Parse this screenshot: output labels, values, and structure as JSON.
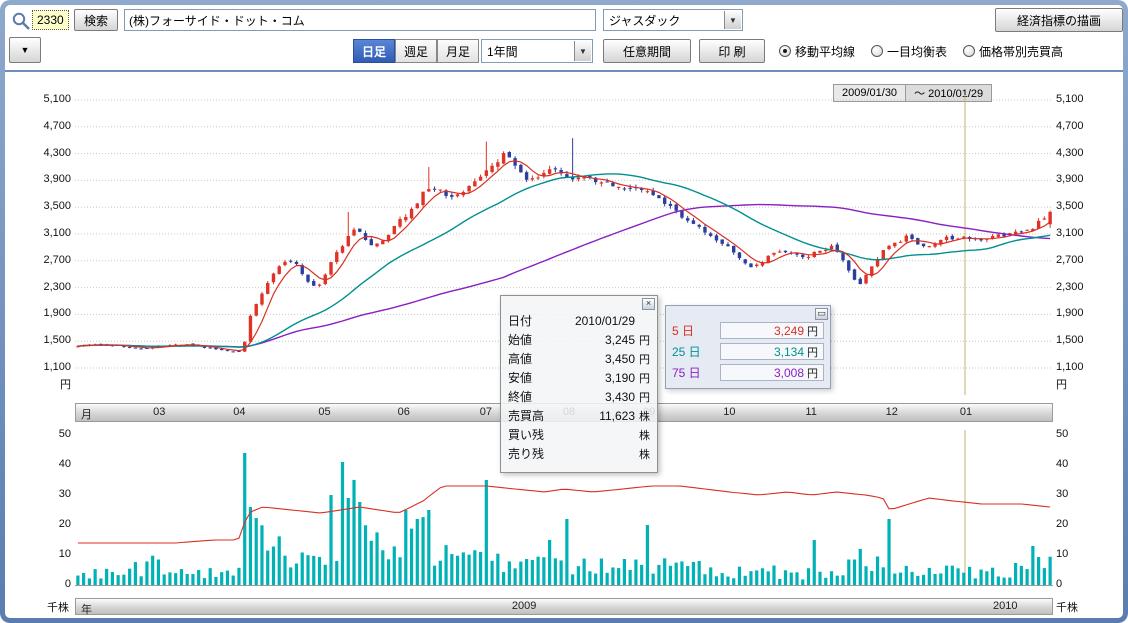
{
  "colors": {
    "frame": "#6d8fbf",
    "active_tab": "#2f5cb5",
    "code_field_bg": "#ffffcc"
  },
  "toolbar": {
    "code_value": "2330",
    "search_button": "検索",
    "company_value": "(株)フォーサイド・ドット・コム",
    "market_select": "ジャスダック",
    "draw_indicator_button": "経済指標の描画",
    "dropdown_arrow": "▼",
    "tab_daily": "日足",
    "tab_weekly": "週足",
    "tab_monthly": "月足",
    "period_select": "1年間",
    "custom_period_button": "任意期間",
    "print_button": "印 刷",
    "radio_ma": "移動平均線",
    "radio_ichimoku": "一目均衡表",
    "radio_volume_by_price": "価格帯別売買高"
  },
  "date_range": {
    "from": "2009/01/30",
    "to": "～ 2010/01/29"
  },
  "price_axis": {
    "ticks": [
      "5,100",
      "4,700",
      "4,300",
      "3,900",
      "3,500",
      "3,100",
      "2,700",
      "2,300",
      "1,900",
      "1,500",
      "1,100"
    ],
    "unit": "円"
  },
  "volume_axis": {
    "ticks": [
      "50",
      "40",
      "30",
      "20",
      "10",
      "0"
    ],
    "unit": "千株"
  },
  "month_strip": {
    "left_label": "月"
  },
  "year_strip": {
    "left_label": "年",
    "years": [
      {
        "label": "2009",
        "x": 0.46
      },
      {
        "label": "2010",
        "x": 0.952
      }
    ]
  },
  "tooltip": {
    "rows": [
      {
        "label": "日付",
        "value": "2010/01/29",
        "suffix": ""
      },
      {
        "label": "始値",
        "value": "3,245",
        "suffix": "円"
      },
      {
        "label": "高値",
        "value": "3,450",
        "suffix": "円"
      },
      {
        "label": "安値",
        "value": "3,190",
        "suffix": "円"
      },
      {
        "label": "終値",
        "value": "3,430",
        "suffix": "円"
      },
      {
        "label": "売買高",
        "value": "11,623",
        "suffix": "株"
      },
      {
        "label": "買い残",
        "value": "",
        "suffix": "株"
      },
      {
        "label": "売り残",
        "value": "",
        "suffix": "株"
      }
    ]
  },
  "ma_legend": {
    "rows": [
      {
        "label": "5 日",
        "value": "3,249",
        "suffix": "円",
        "color": "#d92f23"
      },
      {
        "label": "25 日",
        "value": "3,134",
        "suffix": "円",
        "color": "#00908f"
      },
      {
        "label": "75 日",
        "value": "3,008",
        "suffix": "円",
        "color": "#8b1fc4"
      }
    ]
  },
  "chart_data": {
    "type": "candlestick+volume",
    "title": "(株)フォーサイド・ドット・コム 日足 1年間",
    "date_range": [
      "2009/01/30",
      "2010/01/29"
    ],
    "price_ylim": [
      1100,
      5100
    ],
    "price_tick_step": 400,
    "volume_ylim": [
      0,
      50
    ],
    "volume_unit": "千株",
    "last_candle": {
      "date": "2010/01/29",
      "open": 3245,
      "high": 3450,
      "low": 3190,
      "close": 3430,
      "volume_k": 11.623
    },
    "ma_values_latest": {
      "ma5": 3249,
      "ma25": 3134,
      "ma75": 3008
    },
    "candle_count": 170,
    "seed": 7,
    "up_color": "#e03227",
    "down_color": "#2b3f9e",
    "ma_colors": {
      "ma5": "#d92f23",
      "ma25": "#00908f",
      "ma75": "#8b1fc4"
    },
    "volume_color": "#00b2b5",
    "volume_ma_color": "#d92f23",
    "cursor_color": "#c7b170",
    "cursor_x": 0.91,
    "months": [
      {
        "label": "03",
        "x": 0.087
      },
      {
        "label": "04",
        "x": 0.169
      },
      {
        "label": "05",
        "x": 0.256
      },
      {
        "label": "06",
        "x": 0.337
      },
      {
        "label": "07",
        "x": 0.421
      },
      {
        "label": "08",
        "x": 0.506
      },
      {
        "label": "09",
        "x": 0.588
      },
      {
        "label": "10",
        "x": 0.67
      },
      {
        "label": "11",
        "x": 0.754
      },
      {
        "label": "12",
        "x": 0.836
      },
      {
        "label": "01",
        "x": 0.912
      }
    ],
    "close_anchors": [
      [
        0,
        1440
      ],
      [
        0.02,
        1460
      ],
      [
        0.045,
        1420
      ],
      [
        0.07,
        1390
      ],
      [
        0.09,
        1430
      ],
      [
        0.11,
        1450
      ],
      [
        0.13,
        1400
      ],
      [
        0.15,
        1360
      ],
      [
        0.165,
        1340
      ],
      [
        0.172,
        1500
      ],
      [
        0.178,
        1900
      ],
      [
        0.19,
        2250
      ],
      [
        0.205,
        2600
      ],
      [
        0.215,
        2700
      ],
      [
        0.225,
        2640
      ],
      [
        0.235,
        2420
      ],
      [
        0.245,
        2280
      ],
      [
        0.255,
        2500
      ],
      [
        0.265,
        2800
      ],
      [
        0.275,
        3000
      ],
      [
        0.285,
        3150
      ],
      [
        0.295,
        3050
      ],
      [
        0.305,
        2900
      ],
      [
        0.315,
        3000
      ],
      [
        0.325,
        3200
      ],
      [
        0.335,
        3350
      ],
      [
        0.345,
        3500
      ],
      [
        0.355,
        3700
      ],
      [
        0.365,
        3820
      ],
      [
        0.375,
        3740
      ],
      [
        0.385,
        3620
      ],
      [
        0.395,
        3720
      ],
      [
        0.405,
        3860
      ],
      [
        0.415,
        3960
      ],
      [
        0.425,
        4060
      ],
      [
        0.435,
        4220
      ],
      [
        0.44,
        4300
      ],
      [
        0.45,
        4100
      ],
      [
        0.46,
        3950
      ],
      [
        0.47,
        3900
      ],
      [
        0.48,
        4000
      ],
      [
        0.488,
        4150
      ],
      [
        0.495,
        4050
      ],
      [
        0.505,
        3960
      ],
      [
        0.515,
        3900
      ],
      [
        0.525,
        3950
      ],
      [
        0.535,
        3900
      ],
      [
        0.545,
        3860
      ],
      [
        0.56,
        3800
      ],
      [
        0.575,
        3760
      ],
      [
        0.59,
        3700
      ],
      [
        0.605,
        3560
      ],
      [
        0.615,
        3420
      ],
      [
        0.625,
        3300
      ],
      [
        0.635,
        3220
      ],
      [
        0.645,
        3120
      ],
      [
        0.655,
        3020
      ],
      [
        0.665,
        2960
      ],
      [
        0.675,
        2820
      ],
      [
        0.685,
        2660
      ],
      [
        0.695,
        2600
      ],
      [
        0.705,
        2700
      ],
      [
        0.715,
        2800
      ],
      [
        0.725,
        2860
      ],
      [
        0.735,
        2800
      ],
      [
        0.745,
        2760
      ],
      [
        0.755,
        2800
      ],
      [
        0.765,
        2860
      ],
      [
        0.775,
        2900
      ],
      [
        0.785,
        2760
      ],
      [
        0.795,
        2520
      ],
      [
        0.803,
        2320
      ],
      [
        0.81,
        2450
      ],
      [
        0.818,
        2650
      ],
      [
        0.825,
        2800
      ],
      [
        0.835,
        2900
      ],
      [
        0.845,
        3000
      ],
      [
        0.855,
        3060
      ],
      [
        0.865,
        2960
      ],
      [
        0.875,
        2910
      ],
      [
        0.885,
        3000
      ],
      [
        0.895,
        3050
      ],
      [
        0.905,
        3010
      ],
      [
        0.915,
        3050
      ],
      [
        0.925,
        3010
      ],
      [
        0.935,
        3050
      ],
      [
        0.945,
        3100
      ],
      [
        0.955,
        3080
      ],
      [
        0.965,
        3120
      ],
      [
        0.975,
        3150
      ],
      [
        0.985,
        3220
      ],
      [
        1,
        3430
      ]
    ],
    "high_spikes": [
      [
        0.276,
        3430
      ],
      [
        0.363,
        4100
      ],
      [
        0.421,
        4480
      ],
      [
        0.506,
        4530
      ]
    ],
    "volume_base_anchors": [
      [
        0,
        3
      ],
      [
        0.05,
        4
      ],
      [
        0.075,
        7
      ],
      [
        0.09,
        4
      ],
      [
        0.12,
        3
      ],
      [
        0.15,
        4
      ],
      [
        0.165,
        8
      ],
      [
        0.175,
        20
      ],
      [
        0.185,
        16
      ],
      [
        0.2,
        12
      ],
      [
        0.215,
        10
      ],
      [
        0.23,
        7
      ],
      [
        0.245,
        6
      ],
      [
        0.255,
        9
      ],
      [
        0.265,
        12
      ],
      [
        0.275,
        18
      ],
      [
        0.285,
        24
      ],
      [
        0.295,
        18
      ],
      [
        0.31,
        12
      ],
      [
        0.325,
        10
      ],
      [
        0.34,
        13
      ],
      [
        0.35,
        16
      ],
      [
        0.36,
        14
      ],
      [
        0.375,
        10
      ],
      [
        0.39,
        8
      ],
      [
        0.405,
        10
      ],
      [
        0.42,
        13
      ],
      [
        0.435,
        9
      ],
      [
        0.45,
        7
      ],
      [
        0.465,
        6
      ],
      [
        0.48,
        8
      ],
      [
        0.49,
        12
      ],
      [
        0.5,
        9
      ],
      [
        0.515,
        7
      ],
      [
        0.53,
        6
      ],
      [
        0.55,
        6
      ],
      [
        0.57,
        6
      ],
      [
        0.585,
        9
      ],
      [
        0.6,
        7
      ],
      [
        0.62,
        5
      ],
      [
        0.64,
        6
      ],
      [
        0.66,
        5
      ],
      [
        0.68,
        4
      ],
      [
        0.7,
        5
      ],
      [
        0.72,
        4
      ],
      [
        0.74,
        3
      ],
      [
        0.76,
        4
      ],
      [
        0.78,
        5
      ],
      [
        0.795,
        7
      ],
      [
        0.81,
        9
      ],
      [
        0.825,
        6
      ],
      [
        0.84,
        6
      ],
      [
        0.855,
        5
      ],
      [
        0.87,
        4
      ],
      [
        0.885,
        5
      ],
      [
        0.9,
        4
      ],
      [
        0.915,
        4
      ],
      [
        0.93,
        4
      ],
      [
        0.945,
        5
      ],
      [
        0.96,
        4
      ],
      [
        0.975,
        6
      ],
      [
        0.99,
        8
      ],
      [
        1,
        10
      ]
    ],
    "volume_spikes": [
      [
        0.174,
        44
      ],
      [
        0.258,
        30
      ],
      [
        0.272,
        41
      ],
      [
        0.281,
        29
      ],
      [
        0.337,
        25
      ],
      [
        0.352,
        22
      ],
      [
        0.362,
        25
      ],
      [
        0.419,
        35
      ],
      [
        0.5,
        22
      ],
      [
        0.585,
        20
      ],
      [
        0.757,
        15
      ],
      [
        0.833,
        22
      ],
      [
        0.985,
        13
      ]
    ],
    "volume_ma_anchors": [
      [
        0,
        14
      ],
      [
        0.1,
        14
      ],
      [
        0.14,
        15
      ],
      [
        0.165,
        15
      ],
      [
        0.175,
        24
      ],
      [
        0.19,
        26
      ],
      [
        0.22,
        25
      ],
      [
        0.25,
        24
      ],
      [
        0.27,
        25
      ],
      [
        0.29,
        26
      ],
      [
        0.31,
        25
      ],
      [
        0.33,
        24
      ],
      [
        0.355,
        28
      ],
      [
        0.375,
        33
      ],
      [
        0.42,
        33
      ],
      [
        0.45,
        32
      ],
      [
        0.48,
        31
      ],
      [
        0.5,
        32
      ],
      [
        0.53,
        31
      ],
      [
        0.56,
        32
      ],
      [
        0.59,
        33
      ],
      [
        0.62,
        33
      ],
      [
        0.645,
        32
      ],
      [
        0.67,
        31
      ],
      [
        0.7,
        30
      ],
      [
        0.73,
        31
      ],
      [
        0.755,
        30
      ],
      [
        0.78,
        31
      ],
      [
        0.81,
        30
      ],
      [
        0.828,
        29
      ],
      [
        0.835,
        25
      ],
      [
        0.855,
        27
      ],
      [
        0.875,
        29
      ],
      [
        0.9,
        28
      ],
      [
        0.93,
        27
      ],
      [
        0.97,
        27
      ],
      [
        1,
        26
      ]
    ]
  }
}
